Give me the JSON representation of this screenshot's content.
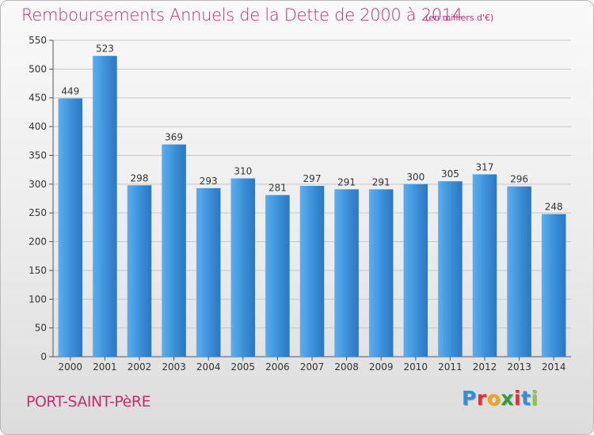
{
  "header": {
    "title": "Remboursements Annuels de la Dette de 2000 à 2014",
    "subtitle": "(en milliers d'€)"
  },
  "commune": "PORT-SAINT-PèRE",
  "logo": {
    "text": "Proxiti",
    "letters": [
      "P",
      "r",
      "o",
      "x",
      "i",
      "t",
      "i"
    ],
    "letter_colors": [
      "#2f8fd8",
      "#e0322e",
      "#f3a51a",
      "#2e9d3a",
      "#e0322e",
      "#2f8fd8",
      "#8cc63f"
    ]
  },
  "chart_data": {
    "type": "bar",
    "title": "Remboursements Annuels de la Dette de 2000 à 2014",
    "subtitle": "(en milliers d'€)",
    "categories": [
      "2000",
      "2001",
      "2002",
      "2003",
      "2004",
      "2005",
      "2006",
      "2007",
      "2008",
      "2009",
      "2010",
      "2011",
      "2012",
      "2013",
      "2014"
    ],
    "values": [
      449,
      523,
      298,
      369,
      293,
      310,
      281,
      297,
      291,
      291,
      300,
      305,
      317,
      296,
      248
    ],
    "ylim": [
      0,
      550
    ],
    "yticks": [
      0,
      50,
      100,
      150,
      200,
      250,
      300,
      350,
      400,
      450,
      500,
      550
    ],
    "grid": true,
    "bar_color": "#3b8fd6",
    "bar_color_light": "#5aaef0",
    "bar_color_dark": "#2a78c2",
    "grid_color": "#c8c8c8"
  }
}
